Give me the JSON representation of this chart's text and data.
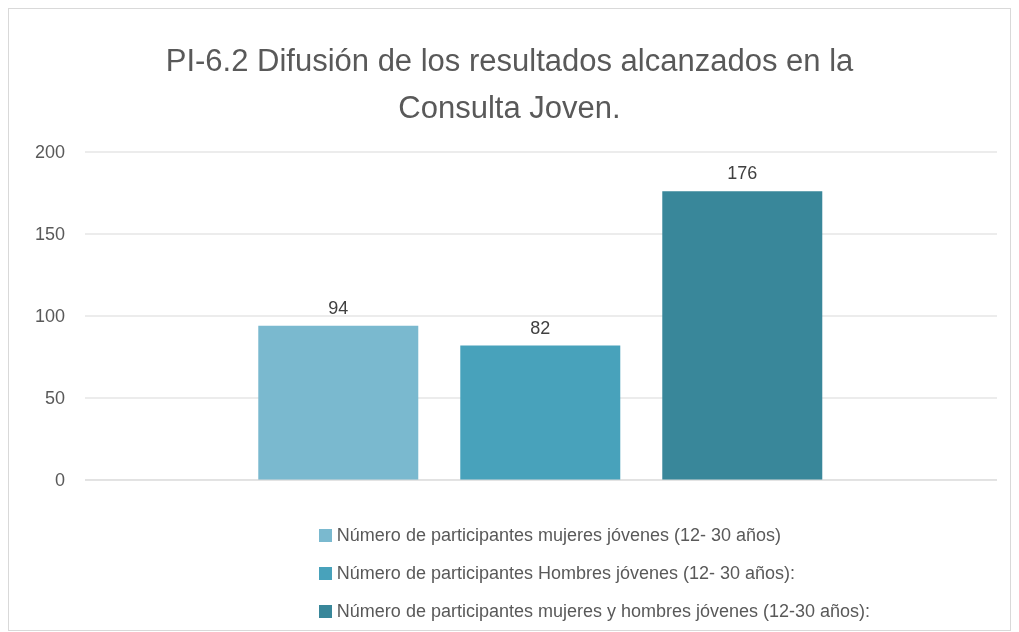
{
  "chart_data": {
    "type": "bar",
    "title": "PI-6.2 Difusión de los resultados alcanzados en la Consulta Joven.",
    "categories": [
      null
    ],
    "series": [
      {
        "name": "Número de participantes mujeres jóvenes (12- 30 años)",
        "color": "#7ab9cf",
        "values": [
          94
        ]
      },
      {
        "name": "Número de participantes Hombres jóvenes (12- 30 años):",
        "color": "#48a2bb",
        "values": [
          82
        ]
      },
      {
        "name": "Número de participantes mujeres y hombres jóvenes (12-30 años):",
        "color": "#39879a",
        "values": [
          176
        ]
      }
    ],
    "ylim": [
      0,
      200
    ],
    "yticks": [
      0,
      50,
      100,
      150,
      200
    ],
    "grid": "y",
    "data_labels": true,
    "legend": "bottom"
  }
}
